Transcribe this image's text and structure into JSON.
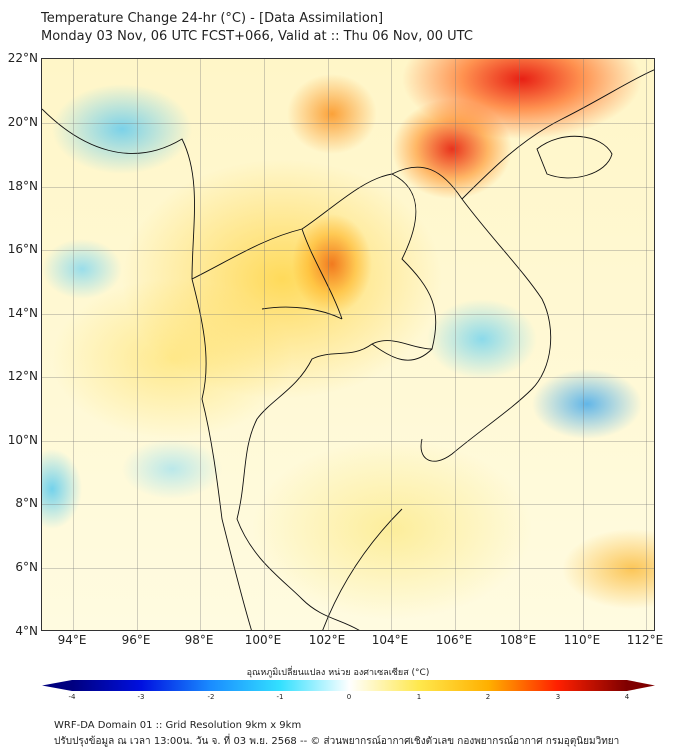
{
  "title": {
    "line1": "Temperature Change 24-hr (°C) - [Data Assimilation]",
    "line2": "Monday 03 Nov, 06 UTC FCST+066, Valid at :: Thu 06 Nov, 00 UTC"
  },
  "map": {
    "lat_labels": [
      "22°N",
      "20°N",
      "18°N",
      "16°N",
      "14°N",
      "12°N",
      "10°N",
      "8°N",
      "6°N",
      "4°N"
    ],
    "lon_labels": [
      "94°E",
      "96°E",
      "98°E",
      "100°E",
      "102°E",
      "104°E",
      "106°E",
      "108°E",
      "110°E",
      "112°E"
    ]
  },
  "colorbar": {
    "title": "อุณหภูมิเปลี่ยนแปลง หน่วย องศาเซลเซียส (°C)",
    "ticks": [
      "-4",
      "-3",
      "-2",
      "-1",
      "0",
      "1",
      "2",
      "3",
      "4"
    ],
    "colors": [
      "#00007f",
      "#0010e0",
      "#1a8cff",
      "#33e0ff",
      "#ffffff",
      "#ffe84d",
      "#ffb000",
      "#ff2000",
      "#7f0000"
    ]
  },
  "footer": {
    "line1": "WRF-DA Domain 01 :: Grid Resolution 9km x 9km",
    "line2": "ปรับปรุงข้อมูล ณ เวลา 13:00น. วัน จ. ที่ 03 พ.ย. 2568 -- © ส่วนพยากรณ์อากาศเชิงตัวเลข กองพยากรณ์อากาศ กรมอุตุนิยมวิทยา"
  }
}
